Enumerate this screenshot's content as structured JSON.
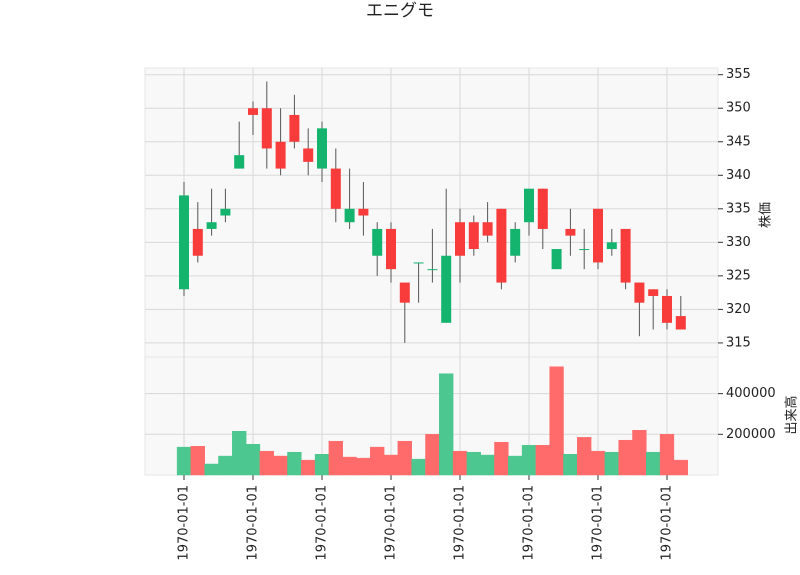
{
  "chart_data": {
    "type": "candlestick",
    "title": "エニグモ",
    "x": [
      "1970-01-01",
      null,
      null,
      null,
      null,
      "1970-01-01",
      null,
      null,
      null,
      null,
      "1970-01-01",
      null,
      null,
      null,
      null,
      "1970-01-01",
      null,
      null,
      null,
      null,
      "1970-01-01",
      null,
      null,
      null,
      null,
      "1970-01-01",
      null,
      null,
      null,
      null,
      "1970-01-01",
      null,
      null,
      null,
      null,
      "1970-01-01",
      null
    ],
    "open": [
      323,
      332,
      332,
      334,
      341,
      350,
      350,
      345,
      349,
      344,
      341,
      341,
      333,
      335,
      328,
      332,
      324,
      327,
      326,
      318,
      333,
      333,
      333,
      335,
      328,
      333,
      338,
      326,
      332,
      329,
      335,
      329,
      332,
      324,
      323,
      322,
      319
    ],
    "high": [
      339,
      336,
      338,
      338,
      348,
      351,
      354,
      350,
      352,
      347,
      348,
      344,
      341,
      339,
      333,
      333,
      324,
      327,
      332,
      338,
      335,
      334,
      336,
      335,
      333,
      338,
      338,
      329,
      335,
      332,
      335,
      332,
      332,
      324,
      323,
      323,
      322
    ],
    "low": [
      322,
      327,
      331,
      333,
      341,
      346,
      341,
      340,
      344,
      340,
      339,
      333,
      332,
      331,
      325,
      324,
      315,
      321,
      324,
      318,
      324,
      328,
      330,
      323,
      327,
      331,
      329,
      326,
      328,
      326,
      326,
      328,
      323,
      316,
      317,
      317,
      317
    ],
    "close": [
      337,
      328,
      333,
      335,
      343,
      349,
      344,
      341,
      345,
      342,
      347,
      335,
      335,
      334,
      332,
      326,
      321,
      327,
      326,
      328,
      328,
      329,
      331,
      324,
      332,
      338,
      332,
      329,
      331,
      329,
      327,
      330,
      324,
      321,
      322,
      318,
      317
    ],
    "up_color": "#14b46e",
    "down_color": "#f83c3c",
    "ylim": [
      312.9,
      356
    ],
    "yticks": [
      315,
      320,
      325,
      330,
      335,
      340,
      345,
      350,
      355
    ],
    "ylabel": "株価",
    "volume": [
      137000,
      141000,
      54000,
      93000,
      215000,
      151000,
      117000,
      93000,
      112000,
      73000,
      102000,
      166000,
      88000,
      83000,
      137000,
      98000,
      166000,
      78000,
      200000,
      498000,
      117000,
      112000,
      98000,
      161000,
      93000,
      146000,
      146000,
      532000,
      102000,
      185000,
      117000,
      112000,
      171000,
      220000,
      112000,
      200000,
      73000
    ],
    "volume_colors": [
      "#4cc790",
      "#ff6b6b",
      "#4cc790",
      "#4cc790",
      "#4cc790",
      "#4cc790",
      "#ff6b6b",
      "#ff6b6b",
      "#4cc790",
      "#ff6b6b",
      "#4cc790",
      "#ff6b6b",
      "#ff6b6b",
      "#ff6b6b",
      "#ff6b6b",
      "#ff6b6b",
      "#ff6b6b",
      "#4cc790",
      "#ff6b6b",
      "#4cc790",
      "#ff6b6b",
      "#4cc790",
      "#4cc790",
      "#ff6b6b",
      "#4cc790",
      "#4cc790",
      "#ff6b6b",
      "#ff6b6b",
      "#4cc790",
      "#ff6b6b",
      "#ff6b6b",
      "#4cc790",
      "#ff6b6b",
      "#ff6b6b",
      "#4cc790",
      "#ff6b6b",
      "#ff6b6b"
    ],
    "y2lim": [
      0,
      580000
    ],
    "y2ticks": [
      200000,
      400000
    ],
    "y2label": "出来高",
    "grid": true
  }
}
